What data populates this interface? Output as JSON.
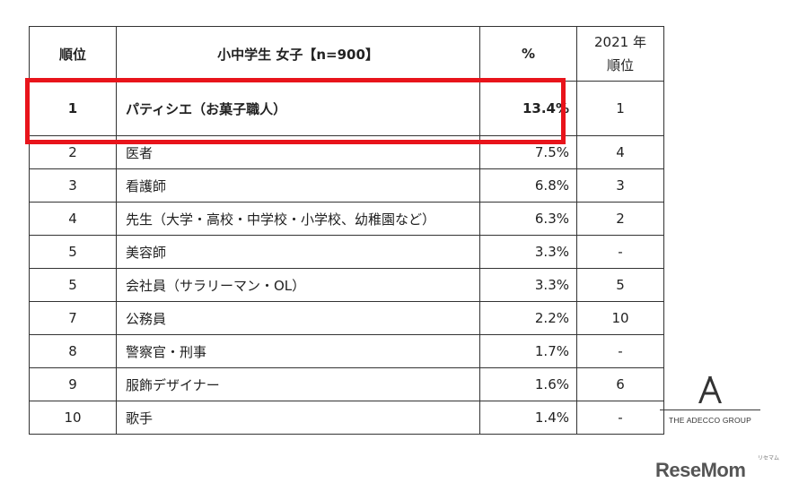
{
  "table": {
    "headers": {
      "rank": "順位",
      "job": "小中学生 女子【n=900】",
      "percent": "%",
      "prev_year_line1": "2021 年",
      "prev_year_line2": "順位"
    },
    "rows": [
      {
        "rank": "1",
        "job": "パティシエ（お菓子職人）",
        "percent": "13.4%",
        "prev": "1"
      },
      {
        "rank": "2",
        "job": "医者",
        "percent": "7.5%",
        "prev": "4"
      },
      {
        "rank": "3",
        "job": "看護師",
        "percent": "6.8%",
        "prev": "3"
      },
      {
        "rank": "4",
        "job": "先生（大学・高校・中学校・小学校、幼稚園など）",
        "percent": "6.3%",
        "prev": "2"
      },
      {
        "rank": "5",
        "job": "美容師",
        "percent": "3.3%",
        "prev": "-"
      },
      {
        "rank": "5",
        "job": "会社員（サラリーマン・OL）",
        "percent": "3.3%",
        "prev": "5"
      },
      {
        "rank": "7",
        "job": "公務員",
        "percent": "2.2%",
        "prev": "10"
      },
      {
        "rank": "8",
        "job": "警察官・刑事",
        "percent": "1.7%",
        "prev": "-"
      },
      {
        "rank": "9",
        "job": "服飾デザイナー",
        "percent": "1.6%",
        "prev": "6"
      },
      {
        "rank": "10",
        "job": "歌手",
        "percent": "1.4%",
        "prev": "-"
      }
    ]
  },
  "highlight_color": "#e8141b",
  "logos": {
    "adecco_text": "THE ADECCO GROUP",
    "resemom_text": "ReseMom",
    "resemom_kana": "リセマム"
  }
}
